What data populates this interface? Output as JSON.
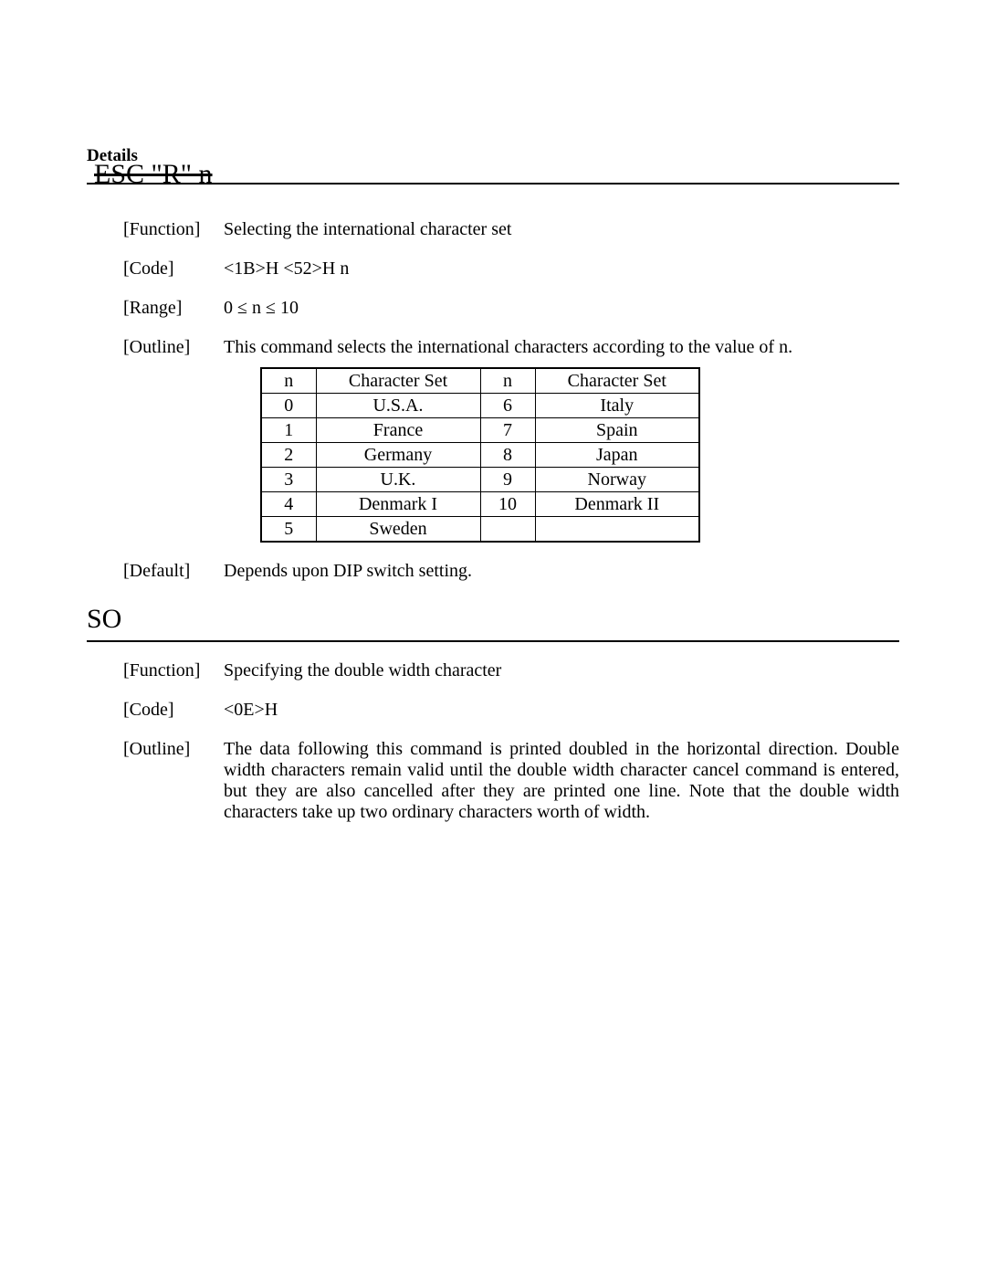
{
  "header": {
    "details_label": "Details"
  },
  "section1": {
    "command_title": "ESC \"R\" n",
    "function_label": "[Function]",
    "function_value": "Selecting the international character set",
    "code_label": "[Code]",
    "code_value": "<1B>H <52>H n",
    "range_label": "[Range]",
    "range_value": "0 ≤ n ≤ 10",
    "outline_label": "[Outline]",
    "outline_value": "This command selects the international characters according to the value of n.",
    "default_label": "[Default]",
    "default_value": "Depends upon DIP switch setting.",
    "table": {
      "columns": [
        "n",
        "Character Set",
        "n",
        "Character Set"
      ],
      "rows": [
        [
          "0",
          "U.S.A.",
          "6",
          "Italy"
        ],
        [
          "1",
          "France",
          "7",
          "Spain"
        ],
        [
          "2",
          "Germany",
          "8",
          "Japan"
        ],
        [
          "3",
          "U.K.",
          "9",
          "Norway"
        ],
        [
          "4",
          "Denmark I",
          "10",
          "Denmark II"
        ],
        [
          "5",
          "Sweden",
          "",
          ""
        ]
      ]
    }
  },
  "section2": {
    "command_title": "SO",
    "function_label": "[Function]",
    "function_value": "Specifying the double width character",
    "code_label": "[Code]",
    "code_value": "<0E>H",
    "outline_label": "[Outline]",
    "outline_value": "The data following this command is printed doubled in the horizontal direction.  Double width characters remain valid until the double width character cancel command is entered, but they are also cancelled after they are printed one line.  Note that the double width characters take up two ordinary characters worth of width."
  }
}
